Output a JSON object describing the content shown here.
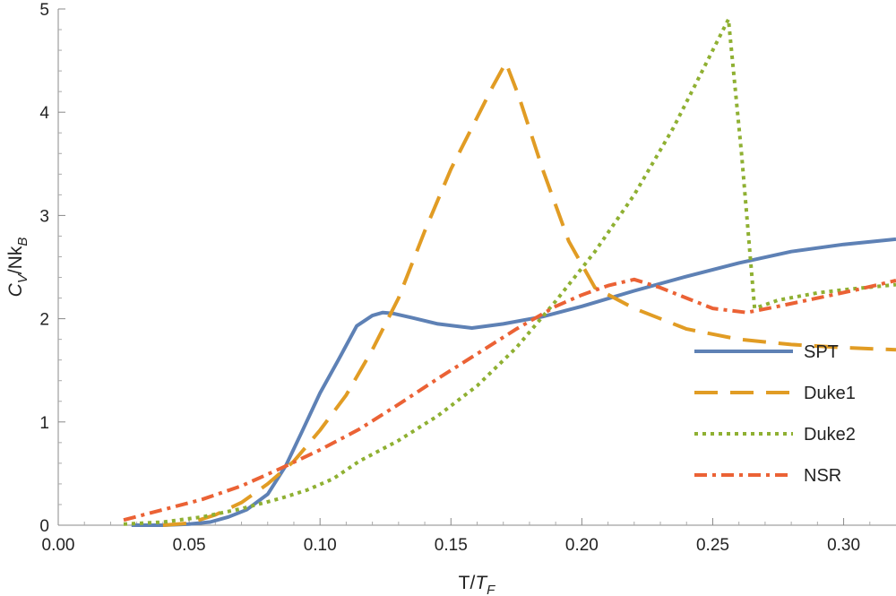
{
  "chart_data": {
    "type": "line",
    "xlabel": "T/T_F",
    "ylabel": "C_V/Nk_B",
    "xlim": [
      0.0,
      0.32
    ],
    "ylim": [
      0,
      5
    ],
    "x_ticks": [
      "0.00",
      "0.05",
      "0.10",
      "0.15",
      "0.20",
      "0.25",
      "0.30"
    ],
    "x_tick_values": [
      0.0,
      0.05,
      0.1,
      0.15,
      0.2,
      0.25,
      0.3
    ],
    "y_ticks": [
      "0",
      "1",
      "2",
      "3",
      "4",
      "5"
    ],
    "y_tick_values": [
      0,
      1,
      2,
      3,
      4,
      5
    ],
    "grid": false,
    "legend_position": "right",
    "series": [
      {
        "name": "SPT",
        "color": "#5E81B5",
        "dash": "solid",
        "x": [
          0.028,
          0.04,
          0.05,
          0.058,
          0.065,
          0.072,
          0.08,
          0.087,
          0.093,
          0.1,
          0.107,
          0.114,
          0.12,
          0.124,
          0.128,
          0.135,
          0.145,
          0.158,
          0.17,
          0.185,
          0.2,
          0.22,
          0.24,
          0.26,
          0.28,
          0.3,
          0.32
        ],
        "y": [
          0.0,
          0.0,
          0.01,
          0.03,
          0.08,
          0.15,
          0.3,
          0.58,
          0.9,
          1.28,
          1.6,
          1.93,
          2.03,
          2.06,
          2.05,
          2.01,
          1.95,
          1.91,
          1.95,
          2.02,
          2.12,
          2.27,
          2.41,
          2.54,
          2.65,
          2.72,
          2.77
        ]
      },
      {
        "name": "Duke1",
        "color": "#E19C24",
        "dash": "long-dash",
        "x": [
          0.04,
          0.05,
          0.06,
          0.07,
          0.08,
          0.09,
          0.1,
          0.11,
          0.12,
          0.13,
          0.14,
          0.15,
          0.16,
          0.166,
          0.171,
          0.176,
          0.185,
          0.195,
          0.205,
          0.22,
          0.24,
          0.26,
          0.28,
          0.3,
          0.32
        ],
        "y": [
          0.0,
          0.02,
          0.1,
          0.22,
          0.4,
          0.62,
          0.92,
          1.26,
          1.7,
          2.2,
          2.85,
          3.45,
          3.95,
          4.25,
          4.48,
          4.15,
          3.45,
          2.75,
          2.3,
          2.1,
          1.9,
          1.8,
          1.75,
          1.72,
          1.7
        ]
      },
      {
        "name": "Duke2",
        "color": "#8FB032",
        "dash": "dotted",
        "x": [
          0.025,
          0.04,
          0.055,
          0.07,
          0.085,
          0.095,
          0.105,
          0.115,
          0.13,
          0.145,
          0.16,
          0.175,
          0.19,
          0.205,
          0.22,
          0.235,
          0.245,
          0.252,
          0.256,
          0.261,
          0.266,
          0.275,
          0.29,
          0.3,
          0.32
        ],
        "y": [
          0.01,
          0.03,
          0.08,
          0.16,
          0.26,
          0.34,
          0.45,
          0.62,
          0.82,
          1.06,
          1.35,
          1.72,
          2.17,
          2.65,
          3.2,
          3.85,
          4.35,
          4.7,
          4.9,
          3.6,
          2.1,
          2.18,
          2.25,
          2.28,
          2.33
        ]
      },
      {
        "name": "NSR",
        "color": "#EB6235",
        "dash": "dash-dot",
        "x": [
          0.025,
          0.04,
          0.055,
          0.07,
          0.085,
          0.1,
          0.115,
          0.13,
          0.145,
          0.16,
          0.175,
          0.19,
          0.2,
          0.21,
          0.22,
          0.23,
          0.24,
          0.25,
          0.263,
          0.275,
          0.29,
          0.305,
          0.32
        ],
        "y": [
          0.05,
          0.15,
          0.25,
          0.38,
          0.55,
          0.73,
          0.93,
          1.17,
          1.42,
          1.66,
          1.9,
          2.12,
          2.23,
          2.32,
          2.38,
          2.3,
          2.2,
          2.1,
          2.06,
          2.12,
          2.2,
          2.28,
          2.37
        ]
      }
    ]
  }
}
